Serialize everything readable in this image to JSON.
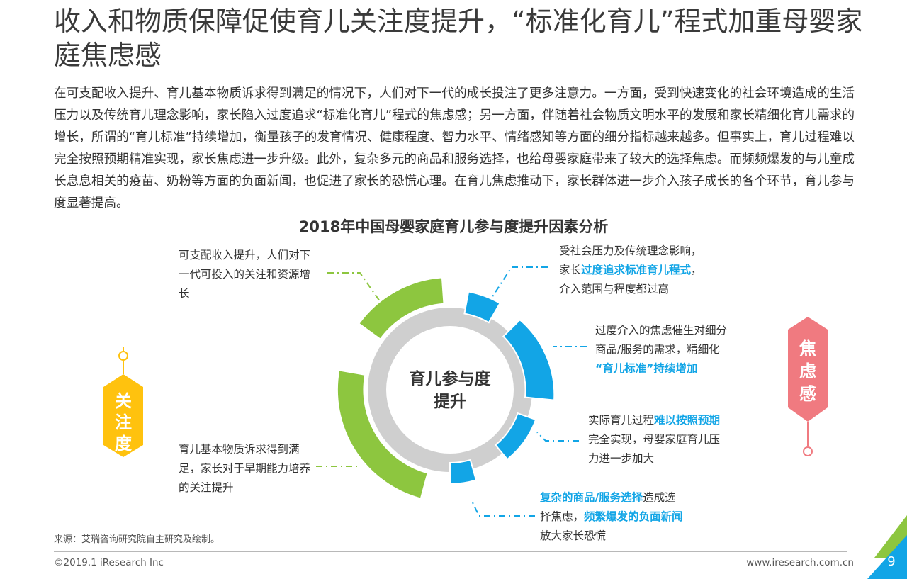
{
  "title": "收入和物质保障促使育儿关注度提升，“标准化育儿”程式加重母婴家庭焦虑感",
  "body": "在可支配收入提升、育儿基本物质诉求得到满足的情况下，人们对下一代的成长投注了更多注意力。一方面，受到快速变化的社会环境造成的生活压力以及传统育儿理念影响，家长陷入过度追求“标准化育儿”程式的焦虑感；另一方面，伴随着社会物质文明水平的发展和家长精细化育儿需求的增长，所谓的“育儿标准”持续增加，衡量孩子的发育情况、健康程度、智力水平、情绪感知等方面的细分指标越来越多。但事实上，育儿过程难以完全按照预期精准实现，家长焦虑进一步升级。此外，复杂多元的商品和服务选择，也给母婴家庭带来了较大的选择焦虑。而频频爆发的与儿童成长息息相关的疫苗、奶粉等方面的负面新闻，也促进了家长的恐慌心理。在育儿焦虑推动下，家长群体进一步介入孩子成长的各个环节，育儿参与度显著提高。",
  "chart_title": "2018年中国母婴家庭育儿参与度提升因素分析",
  "center": {
    "line1": "育儿参与度",
    "line2": "提升"
  },
  "left_tag": [
    "关",
    "注",
    "度"
  ],
  "right_tag": [
    "焦",
    "虑",
    "感"
  ],
  "notes": {
    "left_top": "可支配收入提升，人们对下一代可投入的关注和资源增长",
    "left_bottom": "育儿基本物质诉求得到满足，家长对于早期能力培养的关注提升",
    "r1": {
      "a": "受社会压力及传统理念影响，",
      "b": "家长",
      "hl": "过度追求标准育儿程式",
      "c": "，",
      "d": "介入范围与程度都过高"
    },
    "r2": {
      "a": "过度介入的焦虑催生对细分",
      "b": "商品/服务的需求，精细化",
      "hl": "“育儿标准”持续增加"
    },
    "r3": {
      "a": "实际育儿过程",
      "hl": "难以按照预期",
      "b": "完全实现，母婴家庭育儿压",
      "c": "力进一步加大"
    },
    "r4": {
      "hl1": "复杂的商品/服务选择",
      "a": "造成选",
      "b": "择焦虑，",
      "hl2": "频繁爆发的负面新闻",
      "c": "放大家长恐慌"
    }
  },
  "colors": {
    "green": "#8dc63f",
    "blue": "#12a5e6",
    "gray": "#cfcfcf",
    "yellow": "#ffc20e",
    "pink": "#f07a80"
  },
  "source": "来源：艾瑞咨询研究院自主研究及绘制。",
  "copyright": "©2019.1 iResearch Inc",
  "site": "www.iresearch.com.cn",
  "page": "9"
}
